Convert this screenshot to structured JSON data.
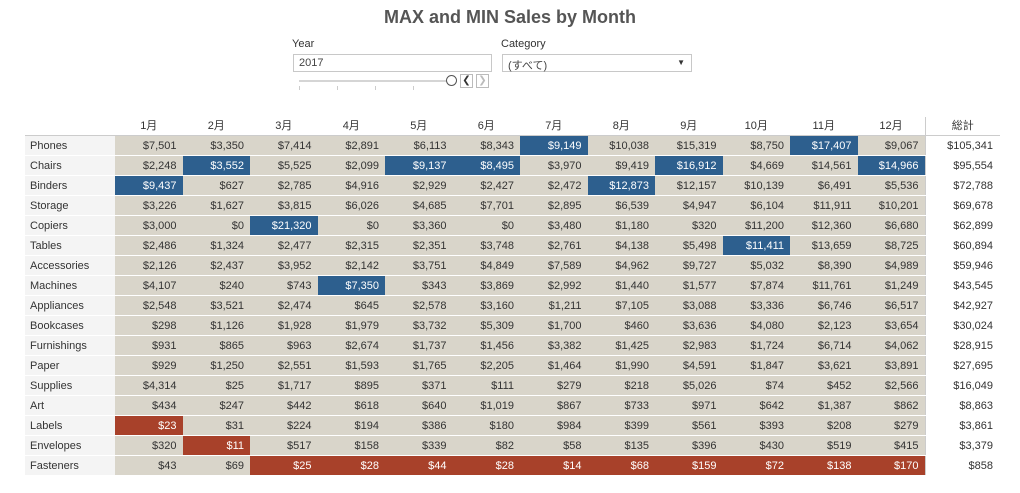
{
  "title": "MAX and MIN Sales by Month",
  "filters": {
    "year_label": "Year",
    "year_value": "2017",
    "category_label": "Category",
    "category_value": "(すべて)"
  },
  "colors": {
    "max": "#2d5f8e",
    "min": "#a8412a",
    "cell": "#d9d5ca"
  },
  "table": {
    "columns": [
      "1月",
      "2月",
      "3月",
      "4月",
      "5月",
      "6月",
      "7月",
      "8月",
      "9月",
      "10月",
      "11月",
      "12月"
    ],
    "total_label": "総計",
    "rows": [
      {
        "label": "Phones",
        "values": [
          "$7,501",
          "$3,350",
          "$7,414",
          "$2,891",
          "$6,113",
          "$8,343",
          "$9,149",
          "$10,038",
          "$15,319",
          "$8,750",
          "$17,407",
          "$9,067"
        ],
        "total": "$105,341",
        "hl": [
          "",
          "",
          "",
          "",
          "",
          "",
          "max",
          "",
          "",
          "",
          "max",
          ""
        ]
      },
      {
        "label": "Chairs",
        "values": [
          "$2,248",
          "$3,552",
          "$5,525",
          "$2,099",
          "$9,137",
          "$8,495",
          "$3,970",
          "$9,419",
          "$16,912",
          "$4,669",
          "$14,561",
          "$14,966"
        ],
        "total": "$95,554",
        "hl": [
          "",
          "max",
          "",
          "",
          "max",
          "max",
          "",
          "",
          "max",
          "",
          "",
          "max"
        ]
      },
      {
        "label": "Binders",
        "values": [
          "$9,437",
          "$627",
          "$2,785",
          "$4,916",
          "$2,929",
          "$2,427",
          "$2,472",
          "$12,873",
          "$12,157",
          "$10,139",
          "$6,491",
          "$5,536"
        ],
        "total": "$72,788",
        "hl": [
          "max",
          "",
          "",
          "",
          "",
          "",
          "",
          "max",
          "",
          "",
          "",
          ""
        ]
      },
      {
        "label": "Storage",
        "values": [
          "$3,226",
          "$1,627",
          "$3,815",
          "$6,026",
          "$4,685",
          "$7,701",
          "$2,895",
          "$6,539",
          "$4,947",
          "$6,104",
          "$11,911",
          "$10,201"
        ],
        "total": "$69,678",
        "hl": [
          "",
          "",
          "",
          "",
          "",
          "",
          "",
          "",
          "",
          "",
          "",
          ""
        ]
      },
      {
        "label": "Copiers",
        "values": [
          "$3,000",
          "$0",
          "$21,320",
          "$0",
          "$3,360",
          "$0",
          "$3,480",
          "$1,180",
          "$320",
          "$11,200",
          "$12,360",
          "$6,680"
        ],
        "total": "$62,899",
        "hl": [
          "",
          "",
          "max",
          "",
          "",
          "",
          "",
          "",
          "",
          "",
          "",
          ""
        ]
      },
      {
        "label": "Tables",
        "values": [
          "$2,486",
          "$1,324",
          "$2,477",
          "$2,315",
          "$2,351",
          "$3,748",
          "$2,761",
          "$4,138",
          "$5,498",
          "$11,411",
          "$13,659",
          "$8,725"
        ],
        "total": "$60,894",
        "hl": [
          "",
          "",
          "",
          "",
          "",
          "",
          "",
          "",
          "",
          "max",
          "",
          ""
        ]
      },
      {
        "label": "Accessories",
        "values": [
          "$2,126",
          "$2,437",
          "$3,952",
          "$2,142",
          "$3,751",
          "$4,849",
          "$7,589",
          "$4,962",
          "$9,727",
          "$5,032",
          "$8,390",
          "$4,989"
        ],
        "total": "$59,946",
        "hl": [
          "",
          "",
          "",
          "",
          "",
          "",
          "",
          "",
          "",
          "",
          "",
          ""
        ]
      },
      {
        "label": "Machines",
        "values": [
          "$4,107",
          "$240",
          "$743",
          "$7,350",
          "$343",
          "$3,869",
          "$2,992",
          "$1,440",
          "$1,577",
          "$7,874",
          "$11,761",
          "$1,249"
        ],
        "total": "$43,545",
        "hl": [
          "",
          "",
          "",
          "max",
          "",
          "",
          "",
          "",
          "",
          "",
          "",
          ""
        ]
      },
      {
        "label": "Appliances",
        "values": [
          "$2,548",
          "$3,521",
          "$2,474",
          "$645",
          "$2,578",
          "$3,160",
          "$1,211",
          "$7,105",
          "$3,088",
          "$3,336",
          "$6,746",
          "$6,517"
        ],
        "total": "$42,927",
        "hl": [
          "",
          "",
          "",
          "",
          "",
          "",
          "",
          "",
          "",
          "",
          "",
          ""
        ]
      },
      {
        "label": "Bookcases",
        "values": [
          "$298",
          "$1,126",
          "$1,928",
          "$1,979",
          "$3,732",
          "$5,309",
          "$1,700",
          "$460",
          "$3,636",
          "$4,080",
          "$2,123",
          "$3,654"
        ],
        "total": "$30,024",
        "hl": [
          "",
          "",
          "",
          "",
          "",
          "",
          "",
          "",
          "",
          "",
          "",
          ""
        ]
      },
      {
        "label": "Furnishings",
        "values": [
          "$931",
          "$865",
          "$963",
          "$2,674",
          "$1,737",
          "$1,456",
          "$3,382",
          "$1,425",
          "$2,983",
          "$1,724",
          "$6,714",
          "$4,062"
        ],
        "total": "$28,915",
        "hl": [
          "",
          "",
          "",
          "",
          "",
          "",
          "",
          "",
          "",
          "",
          "",
          ""
        ]
      },
      {
        "label": "Paper",
        "values": [
          "$929",
          "$1,250",
          "$2,551",
          "$1,593",
          "$1,765",
          "$2,205",
          "$1,464",
          "$1,990",
          "$4,591",
          "$1,847",
          "$3,621",
          "$3,891"
        ],
        "total": "$27,695",
        "hl": [
          "",
          "",
          "",
          "",
          "",
          "",
          "",
          "",
          "",
          "",
          "",
          ""
        ]
      },
      {
        "label": "Supplies",
        "values": [
          "$4,314",
          "$25",
          "$1,717",
          "$895",
          "$371",
          "$111",
          "$279",
          "$218",
          "$5,026",
          "$74",
          "$452",
          "$2,566"
        ],
        "total": "$16,049",
        "hl": [
          "",
          "",
          "",
          "",
          "",
          "",
          "",
          "",
          "",
          "",
          "",
          ""
        ]
      },
      {
        "label": "Art",
        "values": [
          "$434",
          "$247",
          "$442",
          "$618",
          "$640",
          "$1,019",
          "$867",
          "$733",
          "$971",
          "$642",
          "$1,387",
          "$862"
        ],
        "total": "$8,863",
        "hl": [
          "",
          "",
          "",
          "",
          "",
          "",
          "",
          "",
          "",
          "",
          "",
          ""
        ]
      },
      {
        "label": "Labels",
        "values": [
          "$23",
          "$31",
          "$224",
          "$194",
          "$386",
          "$180",
          "$984",
          "$399",
          "$561",
          "$393",
          "$208",
          "$279"
        ],
        "total": "$3,861",
        "hl": [
          "min",
          "",
          "",
          "",
          "",
          "",
          "",
          "",
          "",
          "",
          "",
          ""
        ]
      },
      {
        "label": "Envelopes",
        "values": [
          "$320",
          "$11",
          "$517",
          "$158",
          "$339",
          "$82",
          "$58",
          "$135",
          "$396",
          "$430",
          "$519",
          "$415"
        ],
        "total": "$3,379",
        "hl": [
          "",
          "min",
          "",
          "",
          "",
          "",
          "",
          "",
          "",
          "",
          "",
          ""
        ]
      },
      {
        "label": "Fasteners",
        "values": [
          "$43",
          "$69",
          "$25",
          "$28",
          "$44",
          "$28",
          "$14",
          "$68",
          "$159",
          "$72",
          "$138",
          "$170"
        ],
        "total": "$858",
        "hl": [
          "",
          "",
          "min",
          "min",
          "min",
          "min",
          "min",
          "min",
          "min",
          "min",
          "min",
          "min"
        ]
      }
    ]
  }
}
